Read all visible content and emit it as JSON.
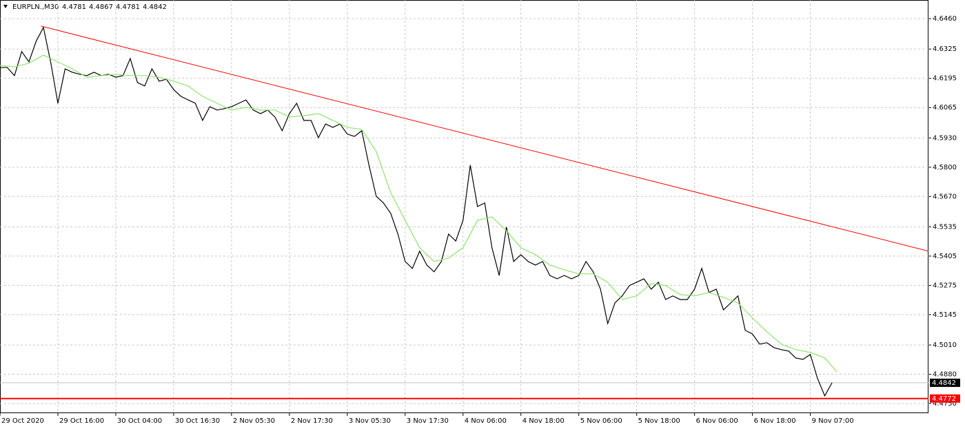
{
  "chart_data": {
    "type": "line",
    "symbol": "EURPLN.,M30",
    "ohlc": [
      4.4781,
      4.4867,
      4.4781,
      4.4842
    ],
    "xlim": [
      0,
      385
    ],
    "ylim": [
      4.4707,
      4.6543
    ],
    "grid": true,
    "xticks": [
      {
        "value": 0,
        "label": "29 Oct 2020"
      },
      {
        "value": 24,
        "label": "29 Oct 16:00"
      },
      {
        "value": 48,
        "label": "30 Oct 04:00"
      },
      {
        "value": 72,
        "label": "30 Oct 16:30"
      },
      {
        "value": 96,
        "label": "2 Nov 05:30"
      },
      {
        "value": 120,
        "label": "2 Nov 17:30"
      },
      {
        "value": 144,
        "label": "3 Nov 05:30"
      },
      {
        "value": 168,
        "label": "3 Nov 17:30"
      },
      {
        "value": 192,
        "label": "4 Nov 06:00"
      },
      {
        "value": 216,
        "label": "4 Nov 18:00"
      },
      {
        "value": 240,
        "label": "5 Nov 06:00"
      },
      {
        "value": 264,
        "label": "5 Nov 18:00"
      },
      {
        "value": 288,
        "label": "6 Nov 06:00"
      },
      {
        "value": 312,
        "label": "6 Nov 18:00"
      },
      {
        "value": 336,
        "label": "9 Nov 07:00"
      }
    ],
    "yticks": [
      {
        "value": 4.646,
        "label": "4.6460"
      },
      4.6325,
      4.6195,
      4.6065,
      {
        "value": 4.593,
        "label": "4.5930"
      },
      {
        "value": 4.58,
        "label": "4.5800"
      },
      {
        "value": 4.567,
        "label": "4.5670"
      },
      4.5535,
      4.5405,
      4.5275,
      4.5145,
      {
        "value": 4.501,
        "label": "4.5010"
      },
      {
        "value": 4.488,
        "label": "4.4880"
      },
      {
        "value": 4.475,
        "label": "4.4750"
      }
    ],
    "series": [
      {
        "color": "#000000",
        "width": 1.2,
        "x": [
          0,
          3,
          6,
          9,
          12,
          15,
          18,
          21,
          24,
          27,
          30,
          33,
          36,
          39,
          42,
          45,
          48,
          51,
          54,
          57,
          60,
          63,
          66,
          69,
          72,
          75,
          78,
          81,
          84,
          87,
          90,
          93,
          96,
          99,
          102,
          105,
          108,
          111,
          114,
          117,
          120,
          123,
          126,
          129,
          132,
          135,
          138,
          141,
          144,
          147,
          150,
          153,
          156,
          159,
          162,
          165,
          168,
          171,
          174,
          177,
          180,
          183,
          186,
          189,
          192,
          195,
          198,
          201,
          204,
          207,
          210,
          213,
          216,
          219,
          222,
          225,
          228,
          231,
          234,
          237,
          240,
          243,
          246,
          249,
          252,
          255,
          258,
          261,
          264,
          267,
          270,
          273,
          276,
          279,
          282,
          285,
          288,
          291,
          294,
          297,
          300,
          303,
          306,
          309,
          312,
          315,
          318,
          321,
          324,
          327,
          330,
          333,
          336,
          339,
          342,
          345
        ],
        "values": [
          4.6243,
          4.6243,
          4.6207,
          4.6314,
          4.6268,
          4.636,
          4.6421,
          4.6268,
          4.6084,
          4.6237,
          4.6222,
          4.6213,
          4.6207,
          4.6222,
          4.6207,
          4.6213,
          4.62,
          4.6207,
          4.6283,
          4.6176,
          4.6161,
          4.6237,
          4.6182,
          4.6191,
          4.6145,
          4.6115,
          4.6099,
          4.6084,
          4.6008,
          4.6069,
          4.6054,
          4.606,
          4.6069,
          4.6084,
          4.6099,
          4.6054,
          4.6038,
          4.6054,
          4.6023,
          4.5962,
          4.6038,
          4.6084,
          4.6008,
          4.6008,
          4.5931,
          4.5992,
          4.5977,
          4.5992,
          4.5947,
          4.5937,
          4.5962,
          4.5809,
          4.5671,
          4.5641,
          4.5595,
          4.5503,
          4.5381,
          4.535,
          4.5427,
          4.5365,
          4.5335,
          4.5381,
          4.5503,
          4.5472,
          4.5564,
          4.5809,
          4.5625,
          4.5641,
          4.5442,
          4.5319,
          4.5534,
          4.5381,
          4.5411,
          4.5381,
          4.5365,
          4.5381,
          4.5319,
          4.5304,
          4.5319,
          4.5304,
          4.5319,
          4.5381,
          4.5335,
          4.5258,
          4.5105,
          4.5197,
          4.5228,
          4.5274,
          4.5289,
          4.5304,
          4.5258,
          4.5289,
          4.5212,
          4.5228,
          4.5212,
          4.5212,
          4.5258,
          4.535,
          4.5243,
          4.5258,
          4.5166,
          4.5197,
          4.5228,
          4.5075,
          4.5059,
          4.5014,
          4.502,
          4.4998,
          4.4989,
          4.4983,
          4.4952,
          4.4946,
          4.4968,
          4.4861,
          4.4784,
          4.4842
        ]
      },
      {
        "color": "#8fe36a",
        "width": 1.2,
        "x": [
          0,
          6,
          12,
          18,
          24,
          30,
          36,
          42,
          48,
          54,
          60,
          66,
          72,
          78,
          84,
          90,
          96,
          102,
          108,
          114,
          120,
          126,
          132,
          138,
          144,
          150,
          156,
          162,
          168,
          174,
          180,
          186,
          192,
          198,
          204,
          210,
          216,
          222,
          228,
          234,
          240,
          246,
          252,
          258,
          264,
          270,
          276,
          282,
          288,
          294,
          300,
          306,
          312,
          318,
          324,
          330,
          336,
          342,
          347
        ],
        "values": [
          4.6252,
          4.6246,
          4.6262,
          4.6298,
          4.6268,
          4.6237,
          4.62,
          4.6207,
          4.6213,
          4.6207,
          4.6207,
          4.62,
          4.6182,
          4.6161,
          4.6115,
          4.6084,
          4.6054,
          4.6066,
          4.6054,
          4.6054,
          4.6023,
          4.6029,
          4.6038,
          4.6008,
          4.5977,
          4.5968,
          4.587,
          4.5687,
          4.5564,
          4.5442,
          4.5381,
          4.5396,
          4.5442,
          4.5564,
          4.5579,
          4.5518,
          4.5442,
          4.5411,
          4.5365,
          4.5344,
          4.5326,
          4.5326,
          4.5289,
          4.5212,
          4.5228,
          4.5283,
          4.5274,
          4.5234,
          4.5228,
          4.5243,
          4.5222,
          4.5197,
          4.513,
          4.5069,
          4.5014,
          4.4989,
          4.4977,
          4.4952,
          4.4891
        ]
      },
      {
        "color": "#ff0000",
        "width": 1,
        "x": [
          17,
          385
        ],
        "values": [
          4.6427,
          4.5427
        ]
      }
    ],
    "hlines": [
      {
        "value": 4.4842,
        "color": "#c0c0c0",
        "label_color": "#000000",
        "width": 1
      },
      {
        "value": 4.4772,
        "color": "#ff0000",
        "label_color": "#ff0000",
        "width": 2
      }
    ]
  }
}
